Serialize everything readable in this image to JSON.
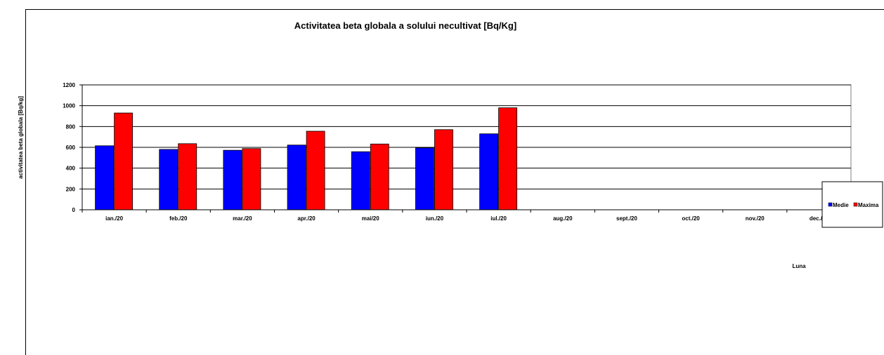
{
  "chart_data": {
    "type": "bar",
    "title": "Activitatea beta globala a solului necultivat [Bq/Kg]",
    "xlabel": "Luna",
    "ylabel": "activitatea beta globala [Bq/kg]",
    "categories": [
      "ian./20",
      "feb./20",
      "mar./20",
      "apr./20",
      "mai/20",
      "iun./20",
      "iul./20",
      "aug./20",
      "sept./20",
      "oct./20",
      "nov./20",
      "dec./20"
    ],
    "series": [
      {
        "name": "Medie",
        "color": "#0000ff",
        "values": [
          615,
          580,
          572,
          622,
          558,
          595,
          730,
          null,
          null,
          null,
          null,
          null
        ]
      },
      {
        "name": "Maxima",
        "color": "#ff0000",
        "values": [
          930,
          635,
          588,
          755,
          632,
          770,
          980,
          null,
          null,
          null,
          null,
          null
        ]
      }
    ],
    "ylim": [
      0,
      1200
    ],
    "yticks": [
      0,
      200,
      400,
      600,
      800,
      1000,
      1200
    ],
    "grid": true,
    "legend": "right"
  }
}
